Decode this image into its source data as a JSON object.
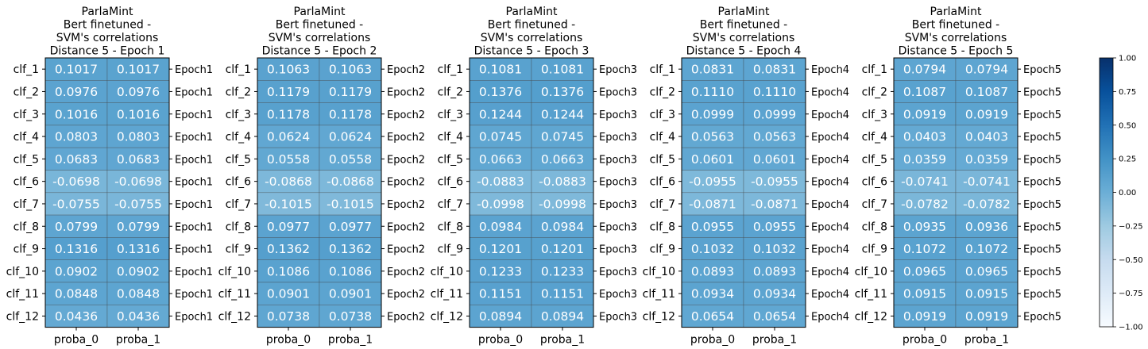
{
  "chart_data": {
    "type": "heatmap",
    "colormap": "Blues",
    "colorbar": {
      "min": -1.0,
      "max": 1.0,
      "ticks": [
        "1.00",
        "0.75",
        "0.50",
        "0.25",
        "0.00",
        "−0.25",
        "−0.50",
        "−0.75",
        "−1.00"
      ],
      "tick_values": [
        1.0,
        0.75,
        0.5,
        0.25,
        0.0,
        -0.25,
        -0.5,
        -0.75,
        -1.0
      ]
    },
    "rows": [
      "clf_1",
      "clf_2",
      "clf_3",
      "clf_4",
      "clf_5",
      "clf_6",
      "clf_7",
      "clf_8",
      "clf_9",
      "clf_10",
      "clf_11",
      "clf_12"
    ],
    "columns": [
      "proba_0",
      "proba_1"
    ],
    "panels": [
      {
        "title": [
          "ParlaMint",
          "Bert finetuned -",
          "SVM's correlations",
          "Distance 5 - Epoch 1"
        ],
        "right_label": "Epoch1",
        "values": [
          [
            "0.1017",
            "0.1017"
          ],
          [
            "0.0976",
            "0.0976"
          ],
          [
            "0.1016",
            "0.1016"
          ],
          [
            "0.0803",
            "0.0803"
          ],
          [
            "0.0683",
            "0.0683"
          ],
          [
            "-0.0698",
            "-0.0698"
          ],
          [
            "-0.0755",
            "-0.0755"
          ],
          [
            "0.0799",
            "0.0799"
          ],
          [
            "0.1316",
            "0.1316"
          ],
          [
            "0.0902",
            "0.0902"
          ],
          [
            "0.0848",
            "0.0848"
          ],
          [
            "0.0436",
            "0.0436"
          ]
        ]
      },
      {
        "title": [
          "ParlaMint",
          "Bert finetuned -",
          "SVM's correlations",
          "Distance 5 - Epoch 2"
        ],
        "right_label": "Epoch2",
        "values": [
          [
            "0.1063",
            "0.1063"
          ],
          [
            "0.1179",
            "0.1179"
          ],
          [
            "0.1178",
            "0.1178"
          ],
          [
            "0.0624",
            "0.0624"
          ],
          [
            "0.0558",
            "0.0558"
          ],
          [
            "-0.0868",
            "-0.0868"
          ],
          [
            "-0.1015",
            "-0.1015"
          ],
          [
            "0.0977",
            "0.0977"
          ],
          [
            "0.1362",
            "0.1362"
          ],
          [
            "0.1086",
            "0.1086"
          ],
          [
            "0.0901",
            "0.0901"
          ],
          [
            "0.0738",
            "0.0738"
          ]
        ]
      },
      {
        "title": [
          "ParlaMint",
          "Bert finetuned -",
          "SVM's correlations",
          "Distance 5 - Epoch 3"
        ],
        "right_label": "Epoch3",
        "values": [
          [
            "0.1081",
            "0.1081"
          ],
          [
            "0.1376",
            "0.1376"
          ],
          [
            "0.1244",
            "0.1244"
          ],
          [
            "0.0745",
            "0.0745"
          ],
          [
            "0.0663",
            "0.0663"
          ],
          [
            "-0.0883",
            "-0.0883"
          ],
          [
            "-0.0998",
            "-0.0998"
          ],
          [
            "0.0984",
            "0.0984"
          ],
          [
            "0.1201",
            "0.1201"
          ],
          [
            "0.1233",
            "0.1233"
          ],
          [
            "0.1151",
            "0.1151"
          ],
          [
            "0.0894",
            "0.0894"
          ]
        ]
      },
      {
        "title": [
          "ParlaMint",
          "Bert finetuned -",
          "SVM's correlations",
          "Distance 5 - Epoch 4"
        ],
        "right_label": "Epoch4",
        "values": [
          [
            "0.0831",
            "0.0831"
          ],
          [
            "0.1110",
            "0.1110"
          ],
          [
            "0.0999",
            "0.0999"
          ],
          [
            "0.0563",
            "0.0563"
          ],
          [
            "0.0601",
            "0.0601"
          ],
          [
            "-0.0955",
            "-0.0955"
          ],
          [
            "-0.0871",
            "-0.0871"
          ],
          [
            "0.0955",
            "0.0955"
          ],
          [
            "0.1032",
            "0.1032"
          ],
          [
            "0.0893",
            "0.0893"
          ],
          [
            "0.0934",
            "0.0934"
          ],
          [
            "0.0654",
            "0.0654"
          ]
        ]
      },
      {
        "title": [
          "ParlaMint",
          "Bert finetuned -",
          "SVM's correlations",
          "Distance 5 - Epoch 5"
        ],
        "right_label": "Epoch5",
        "values": [
          [
            "0.0794",
            "0.0794"
          ],
          [
            "0.1087",
            "0.1087"
          ],
          [
            "0.0919",
            "0.0919"
          ],
          [
            "0.0403",
            "0.0403"
          ],
          [
            "0.0359",
            "0.0359"
          ],
          [
            "-0.0741",
            "-0.0741"
          ],
          [
            "-0.0782",
            "-0.0782"
          ],
          [
            "0.0935",
            "0.0936"
          ],
          [
            "0.1072",
            "0.1072"
          ],
          [
            "0.0965",
            "0.0965"
          ],
          [
            "0.0915",
            "0.0915"
          ],
          [
            "0.0919",
            "0.0919"
          ]
        ]
      }
    ]
  }
}
